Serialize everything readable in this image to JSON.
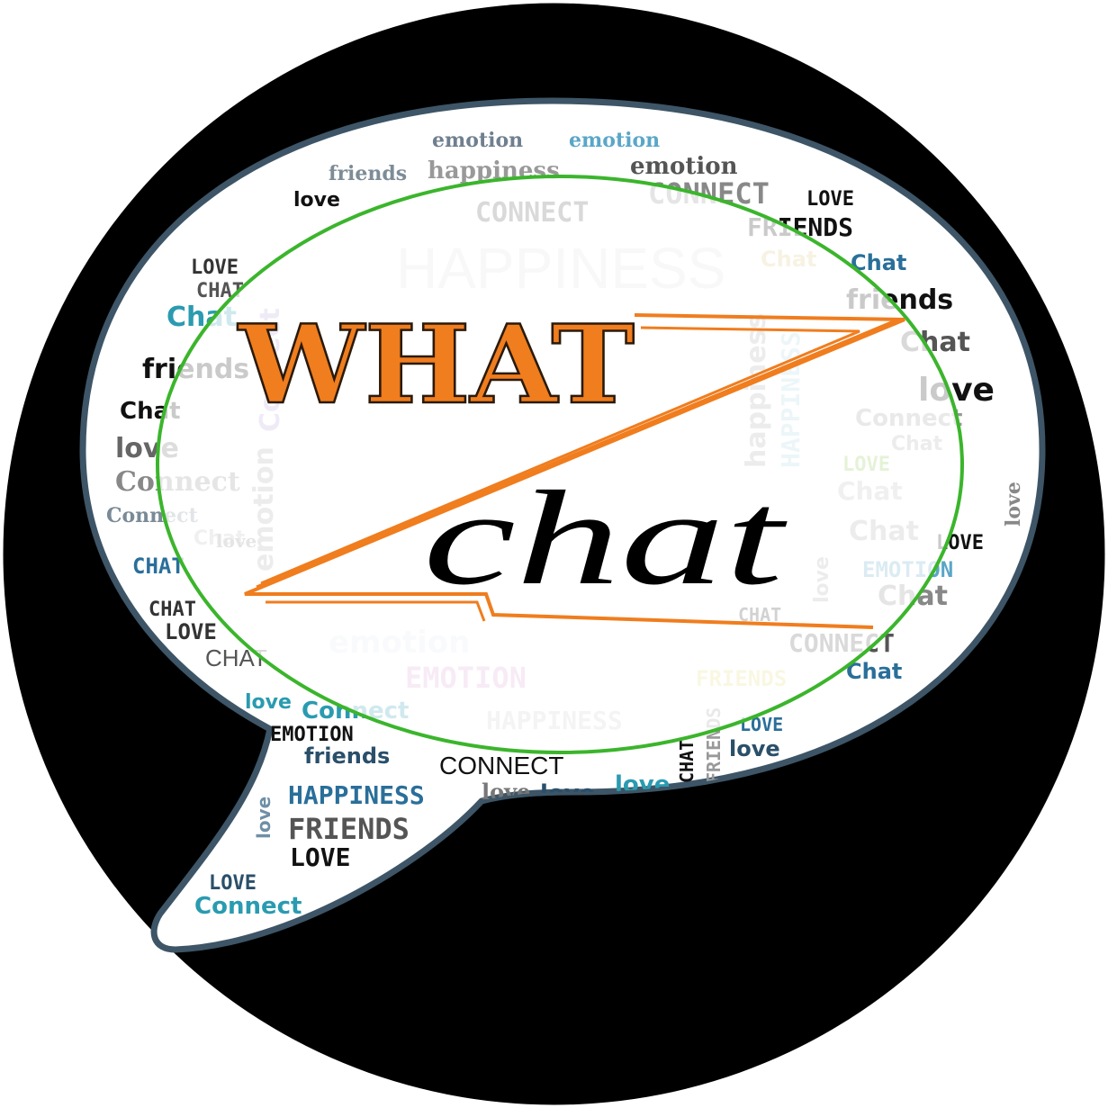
{
  "colors": {
    "background_circle": "#000000",
    "bubble_fill": "#ffffff",
    "bubble_border": "#3d5566",
    "ellipse_stroke": "#3bb52c",
    "accent_orange": "#f07d1e",
    "title_chat": "#000000"
  },
  "title": {
    "what": "WHAT",
    "chat": "chat"
  },
  "word_cloud": [
    {
      "text": "emotion",
      "color": "#6f7f8f",
      "cls": "wc-serif",
      "size": 22
    },
    {
      "text": "emotion",
      "color": "#5aa6c8",
      "cls": "wc-serif",
      "size": 22
    },
    {
      "text": "friends",
      "color": "#7d8c96",
      "cls": "wc-serif",
      "size": 22
    },
    {
      "text": "happiness",
      "color": "#999999",
      "cls": "wc-serif",
      "size": 26
    },
    {
      "text": "emotion",
      "color": "#555555",
      "cls": "wc-serif",
      "size": 26
    },
    {
      "text": "love",
      "color": "#111111",
      "cls": "wc-bold",
      "size": 22
    },
    {
      "text": "CONNECT",
      "color": "#555555",
      "cls": "wc-mono",
      "size": 30
    },
    {
      "text": "LOVE",
      "color": "#111111",
      "cls": "wc-mono",
      "size": 22
    },
    {
      "text": "FRIENDS",
      "color": "#111111",
      "cls": "wc-mono",
      "size": 28
    },
    {
      "text": "CONNECT",
      "color": "#888888",
      "cls": "wc-mono",
      "size": 32
    },
    {
      "text": "HAPPINESS",
      "color": "#dddddd",
      "cls": "wc-thin",
      "size": 64
    },
    {
      "text": "Chat",
      "color": "#d8c27a",
      "cls": "wc-bold",
      "size": 24
    },
    {
      "text": "Chat",
      "color": "#2a6f9a",
      "cls": "wc-bold",
      "size": 24
    },
    {
      "text": "LOVE",
      "color": "#333333",
      "cls": "wc-mono",
      "size": 22
    },
    {
      "text": "CHAT",
      "color": "#555555",
      "cls": "wc-mono",
      "size": 22
    },
    {
      "text": "Chat",
      "color": "#2a9bb0",
      "cls": "wc-bold",
      "size": 30
    },
    {
      "text": "friends",
      "color": "#111111",
      "cls": "wc-bold",
      "size": 30
    },
    {
      "text": "Chat",
      "color": "#111111",
      "cls": "wc-bold",
      "size": 26
    },
    {
      "text": "love",
      "color": "#666666",
      "cls": "wc-bold",
      "size": 30
    },
    {
      "text": "Connect",
      "color": "#888888",
      "cls": "wc-serif",
      "size": 30
    },
    {
      "text": "Connect",
      "color": "#7a8a96",
      "cls": "wc-serif",
      "size": 22
    },
    {
      "text": "Chat",
      "color": "#bbbbbb",
      "cls": "wc-bold",
      "size": 22
    },
    {
      "text": "CHAT",
      "color": "#2a6f9a",
      "cls": "wc-mono",
      "size": 24
    },
    {
      "text": "CHAT",
      "color": "#333333",
      "cls": "wc-mono",
      "size": 22
    },
    {
      "text": "LOVE",
      "color": "#333333",
      "cls": "wc-mono",
      "size": 24
    },
    {
      "text": "CHAT",
      "color": "#555555",
      "cls": "wc-thin",
      "size": 26
    },
    {
      "text": "friends",
      "color": "#111111",
      "cls": "wc-bold",
      "size": 30
    },
    {
      "text": "Chat",
      "color": "#555555",
      "cls": "wc-bold",
      "size": 30
    },
    {
      "text": "love",
      "color": "#111111",
      "cls": "wc-bold",
      "size": 36
    },
    {
      "text": "Connect",
      "color": "#999999",
      "cls": "wc-bold",
      "size": 26
    },
    {
      "text": "Chat",
      "color": "#aaaaaa",
      "cls": "wc-bold",
      "size": 22
    },
    {
      "text": "LOVE",
      "color": "#8bc34a",
      "cls": "wc-mono",
      "size": 22
    },
    {
      "text": "Chat",
      "color": "#bbbbbb",
      "cls": "wc-bold",
      "size": 28
    },
    {
      "text": "Chat",
      "color": "#aaaaaa",
      "cls": "wc-bold",
      "size": 30
    },
    {
      "text": "LOVE",
      "color": "#111111",
      "cls": "wc-mono",
      "size": 22
    },
    {
      "text": "EMOTION",
      "color": "#5aa6c8",
      "cls": "wc-mono",
      "size": 24
    },
    {
      "text": "Chat",
      "color": "#888888",
      "cls": "wc-bold",
      "size": 30
    },
    {
      "text": "love",
      "color": "#888888",
      "cls": "wc-serif",
      "size": 20
    },
    {
      "text": "CHAT",
      "color": "#333333",
      "cls": "wc-mono",
      "size": 20
    },
    {
      "text": "CONNECT",
      "color": "#555555",
      "cls": "wc-mono",
      "size": 28
    },
    {
      "text": "Chat",
      "color": "#2a6f9a",
      "cls": "wc-bold",
      "size": 24
    },
    {
      "text": "emotion",
      "color": "#e0e8ee",
      "cls": "wc-bold",
      "size": 34
    },
    {
      "text": "EMOTION",
      "color": "#d9a6d6",
      "cls": "wc-mono",
      "size": 32
    },
    {
      "text": "FRIENDS",
      "color": "#e4dc7a",
      "cls": "wc-mono",
      "size": 24
    },
    {
      "text": "love",
      "color": "#2a9bb0",
      "cls": "wc-bold",
      "size": 22
    },
    {
      "text": "Connect",
      "color": "#2a9bb0",
      "cls": "wc-bold",
      "size": 26
    },
    {
      "text": "EMOTION",
      "color": "#111111",
      "cls": "wc-mono",
      "size": 22
    },
    {
      "text": "friends",
      "color": "#2a4f6a",
      "cls": "wc-bold",
      "size": 24
    },
    {
      "text": "HAPPINESS",
      "color": "#cccccc",
      "cls": "wc-mono",
      "size": 28
    },
    {
      "text": "CONNECT",
      "color": "#111111",
      "cls": "wc-thin",
      "size": 28
    },
    {
      "text": "love",
      "color": "#777777",
      "cls": "wc-serif",
      "size": 24
    },
    {
      "text": "love",
      "color": "#2a4f6a",
      "cls": "wc-bold",
      "size": 26
    },
    {
      "text": "love",
      "color": "#2a9bb0",
      "cls": "wc-bold",
      "size": 26
    },
    {
      "text": "love",
      "color": "#2a4f6a",
      "cls": "wc-bold",
      "size": 24
    },
    {
      "text": "LOVE",
      "color": "#2a6f9a",
      "cls": "wc-mono",
      "size": 20
    },
    {
      "text": "CHAT",
      "color": "#111111",
      "cls": "wc-mono",
      "size": 20
    },
    {
      "text": "FRIENDS",
      "color": "#999999",
      "cls": "wc-mono",
      "size": 20
    },
    {
      "text": "HAPPINESS",
      "color": "#2a6f9a",
      "cls": "wc-mono",
      "size": 28
    },
    {
      "text": "love",
      "color": "#6f8fa6",
      "cls": "wc-bold",
      "size": 20
    },
    {
      "text": "FRIENDS",
      "color": "#555555",
      "cls": "wc-mono",
      "size": 32
    },
    {
      "text": "LOVE",
      "color": "#111111",
      "cls": "wc-mono",
      "size": 28
    },
    {
      "text": "LOVE",
      "color": "#2a4f6a",
      "cls": "wc-mono",
      "size": 22
    },
    {
      "text": "Connect",
      "color": "#2a9bb0",
      "cls": "wc-bold",
      "size": 26
    },
    {
      "text": "Connect",
      "color": "#b7a6d6",
      "cls": "wc-bold",
      "size": 30
    },
    {
      "text": "emotion",
      "color": "#aaaaaa",
      "cls": "wc-bold",
      "size": 30
    },
    {
      "text": "happiness",
      "color": "#aaaaaa",
      "cls": "wc-bold",
      "size": 30
    },
    {
      "text": "HAPPINESS",
      "color": "#aad4e4",
      "cls": "wc-mono",
      "size": 28
    },
    {
      "text": "love",
      "color": "#aaaaaa",
      "cls": "wc-bold",
      "size": 22
    },
    {
      "text": "love",
      "color": "#888888",
      "cls": "wc-serif",
      "size": 22
    }
  ]
}
